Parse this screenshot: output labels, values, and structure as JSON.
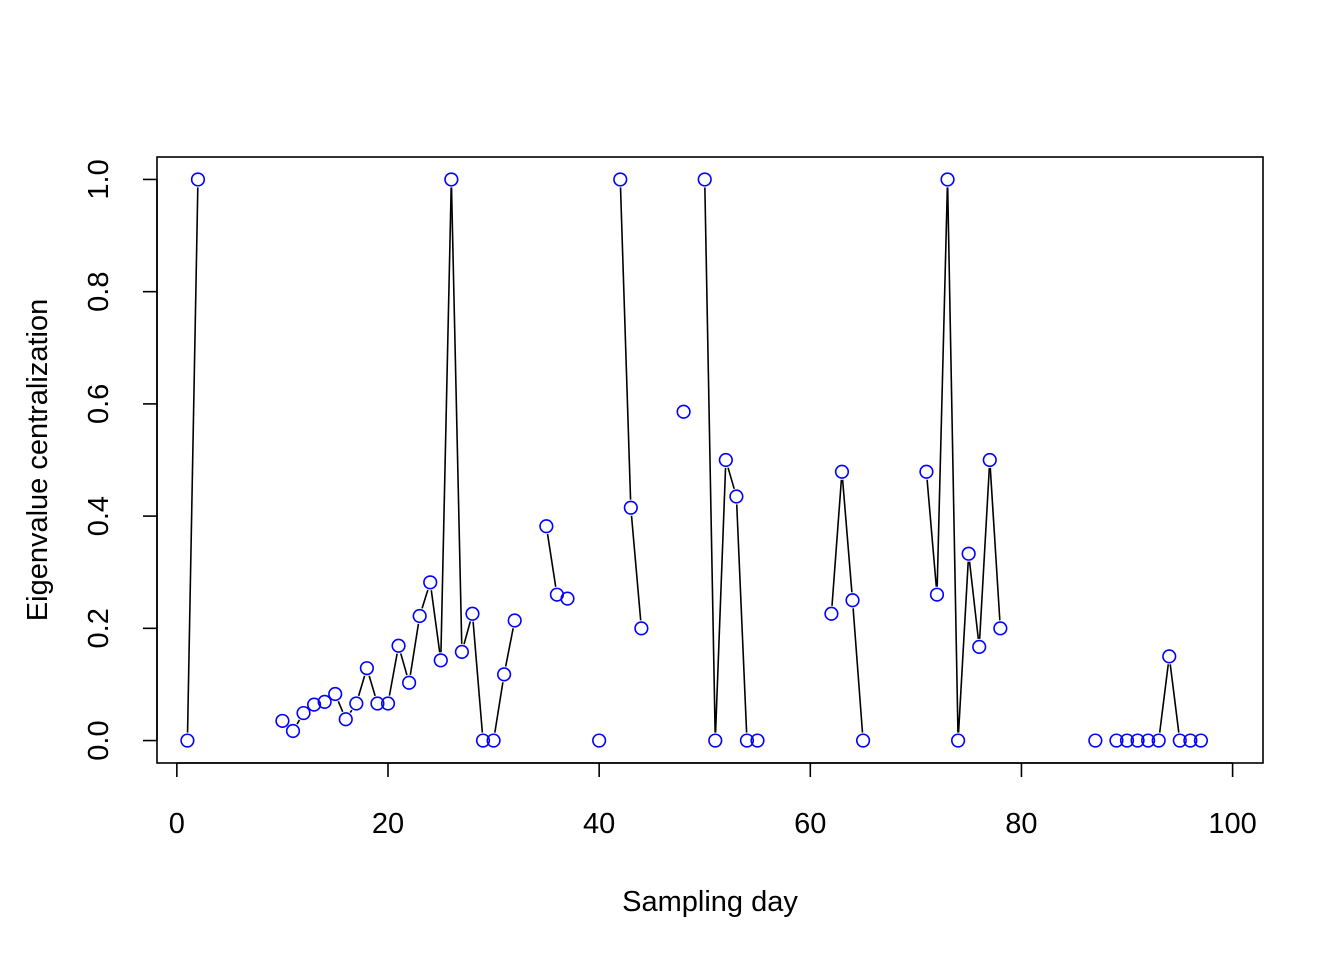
{
  "chart_data": {
    "type": "line",
    "title": "",
    "xlabel": "Sampling day",
    "ylabel": "Eigenvalue centralization",
    "xlim": [
      -1.88,
      102.88
    ],
    "ylim": [
      -0.04,
      1.04
    ],
    "x_ticks": [
      0,
      20,
      40,
      60,
      80,
      100
    ],
    "y_ticks": [
      0.0,
      0.2,
      0.4,
      0.6,
      0.8,
      1.0
    ],
    "x_tick_labels": [
      "0",
      "20",
      "40",
      "60",
      "80",
      "100"
    ],
    "y_tick_labels": [
      "0.0",
      "0.2",
      "0.4",
      "0.6",
      "0.8",
      "1.0"
    ],
    "grid": false,
    "legend": "none",
    "line_color": "#000000",
    "marker_color": "#0000ff",
    "marker": "open-circle",
    "series": [
      {
        "x": [
          1,
          2,
          10,
          11,
          12,
          13,
          14,
          15,
          16,
          17,
          18,
          19,
          20,
          21,
          22,
          23,
          24,
          25,
          26,
          27,
          28,
          29,
          30,
          31,
          32,
          35,
          36,
          37,
          40,
          42,
          43,
          44,
          48,
          50,
          51,
          52,
          53,
          54,
          55,
          62,
          63,
          64,
          65,
          71,
          72,
          73,
          74,
          75,
          76,
          77,
          78,
          87,
          89,
          90,
          91,
          92,
          93,
          94,
          95,
          96,
          97
        ],
        "y": [
          0.0,
          1.0,
          0.035,
          0.017,
          0.049,
          0.064,
          0.069,
          0.083,
          0.038,
          0.066,
          0.129,
          0.066,
          0.066,
          0.169,
          0.103,
          0.222,
          0.282,
          0.143,
          1.0,
          0.158,
          0.226,
          0.0,
          0.0,
          0.118,
          0.214,
          0.382,
          0.26,
          0.253,
          0.0,
          1.0,
          0.415,
          0.2,
          0.586,
          1.0,
          0.0,
          0.5,
          0.435,
          0.0,
          0.0,
          0.226,
          0.479,
          0.25,
          0.0,
          0.479,
          0.26,
          1.0,
          0.0,
          0.333,
          0.167,
          0.5,
          0.2,
          0.0,
          0.0,
          0.0,
          0.0,
          0.0,
          0.0,
          0.15,
          0.0,
          0.0,
          0.0
        ]
      }
    ]
  }
}
